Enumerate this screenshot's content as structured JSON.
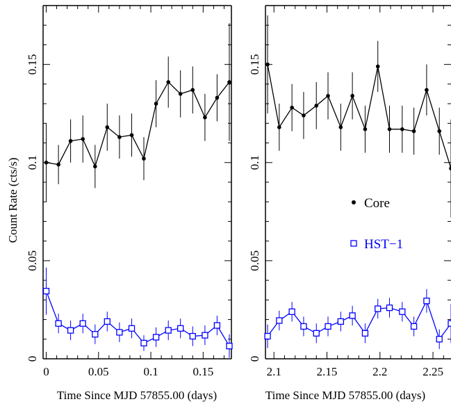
{
  "chart_data": [
    {
      "type": "line",
      "ylabel": "Count Rate (cts/s)",
      "xlabel": "Time Since MJD 57855.00 (days)",
      "xlim": [
        -0.003,
        0.177
      ],
      "ylim": [
        0,
        0.18
      ],
      "xticks": [
        0,
        0.05,
        0.1,
        0.15
      ],
      "xtick_labels": [
        "0",
        "0.05",
        "0.1",
        "0.15"
      ],
      "yticks": [
        0,
        0.05,
        0.1,
        0.15
      ],
      "ytick_labels": [
        "0",
        "0.05",
        "0.1",
        "0.15"
      ],
      "series": [
        {
          "name": "Core",
          "color": "#000000",
          "marker": "circle",
          "x": [
            0.0,
            0.0117,
            0.0233,
            0.035,
            0.0467,
            0.0583,
            0.07,
            0.0817,
            0.0933,
            0.105,
            0.1167,
            0.1283,
            0.14,
            0.1517,
            0.1633,
            0.175
          ],
          "y": [
            0.1,
            0.099,
            0.111,
            0.112,
            0.098,
            0.118,
            0.113,
            0.114,
            0.102,
            0.13,
            0.141,
            0.135,
            0.137,
            0.123,
            0.133,
            0.141
          ],
          "err": [
            0.02,
            0.01,
            0.011,
            0.012,
            0.011,
            0.012,
            0.011,
            0.011,
            0.011,
            0.012,
            0.013,
            0.012,
            0.012,
            0.012,
            0.012,
            0.03
          ]
        },
        {
          "name": "HST−1",
          "color": "#0000ff",
          "marker": "square",
          "x": [
            0.0,
            0.0117,
            0.0233,
            0.035,
            0.0467,
            0.0583,
            0.07,
            0.0817,
            0.0933,
            0.105,
            0.1167,
            0.1283,
            0.14,
            0.1517,
            0.1633,
            0.175
          ],
          "y": [
            0.0345,
            0.018,
            0.0145,
            0.018,
            0.0125,
            0.019,
            0.0135,
            0.0155,
            0.008,
            0.011,
            0.0145,
            0.0155,
            0.0115,
            0.012,
            0.017,
            0.0065
          ],
          "err": [
            0.012,
            0.005,
            0.005,
            0.005,
            0.005,
            0.005,
            0.005,
            0.005,
            0.004,
            0.005,
            0.005,
            0.005,
            0.005,
            0.005,
            0.005,
            0.006
          ]
        }
      ]
    },
    {
      "type": "line",
      "ylabel": "",
      "xlabel": "Time Since MJD 57855.00 (days)",
      "xlim": [
        2.092,
        2.267
      ],
      "ylim": [
        0,
        0.18
      ],
      "xticks": [
        2.1,
        2.15,
        2.2,
        2.25
      ],
      "xtick_labels": [
        "2.1",
        "2.15",
        "2.2",
        "2.25"
      ],
      "yticks": [
        0,
        0.05,
        0.1,
        0.15
      ],
      "ytick_labels": [
        "0",
        "0.05",
        "0.1",
        "0.15"
      ],
      "legend": {
        "placement": "center-right",
        "entries": [
          "Core",
          "HST−1"
        ]
      },
      "series": [
        {
          "name": "Core",
          "color": "#000000",
          "marker": "circle",
          "x": [
            2.094,
            2.105,
            2.117,
            2.128,
            2.14,
            2.151,
            2.163,
            2.174,
            2.186,
            2.198,
            2.209,
            2.221,
            2.232,
            2.244,
            2.256,
            2.267
          ],
          "y": [
            0.15,
            0.118,
            0.128,
            0.124,
            0.129,
            0.134,
            0.118,
            0.134,
            0.117,
            0.149,
            0.117,
            0.117,
            0.116,
            0.137,
            0.116,
            0.097
          ],
          "err": [
            0.025,
            0.012,
            0.012,
            0.012,
            0.012,
            0.012,
            0.012,
            0.012,
            0.012,
            0.013,
            0.012,
            0.012,
            0.012,
            0.013,
            0.012,
            0.025
          ]
        },
        {
          "name": "HST−1",
          "color": "#0000ff",
          "marker": "square",
          "x": [
            2.094,
            2.105,
            2.117,
            2.128,
            2.14,
            2.151,
            2.163,
            2.174,
            2.186,
            2.198,
            2.209,
            2.221,
            2.232,
            2.244,
            2.256,
            2.267
          ],
          "y": [
            0.0115,
            0.0195,
            0.024,
            0.0165,
            0.013,
            0.0165,
            0.019,
            0.022,
            0.013,
            0.0255,
            0.026,
            0.024,
            0.0165,
            0.0295,
            0.01,
            0.018
          ],
          "err": [
            0.006,
            0.005,
            0.005,
            0.005,
            0.005,
            0.005,
            0.005,
            0.005,
            0.005,
            0.005,
            0.005,
            0.005,
            0.005,
            0.006,
            0.005,
            0.01
          ]
        }
      ]
    }
  ]
}
